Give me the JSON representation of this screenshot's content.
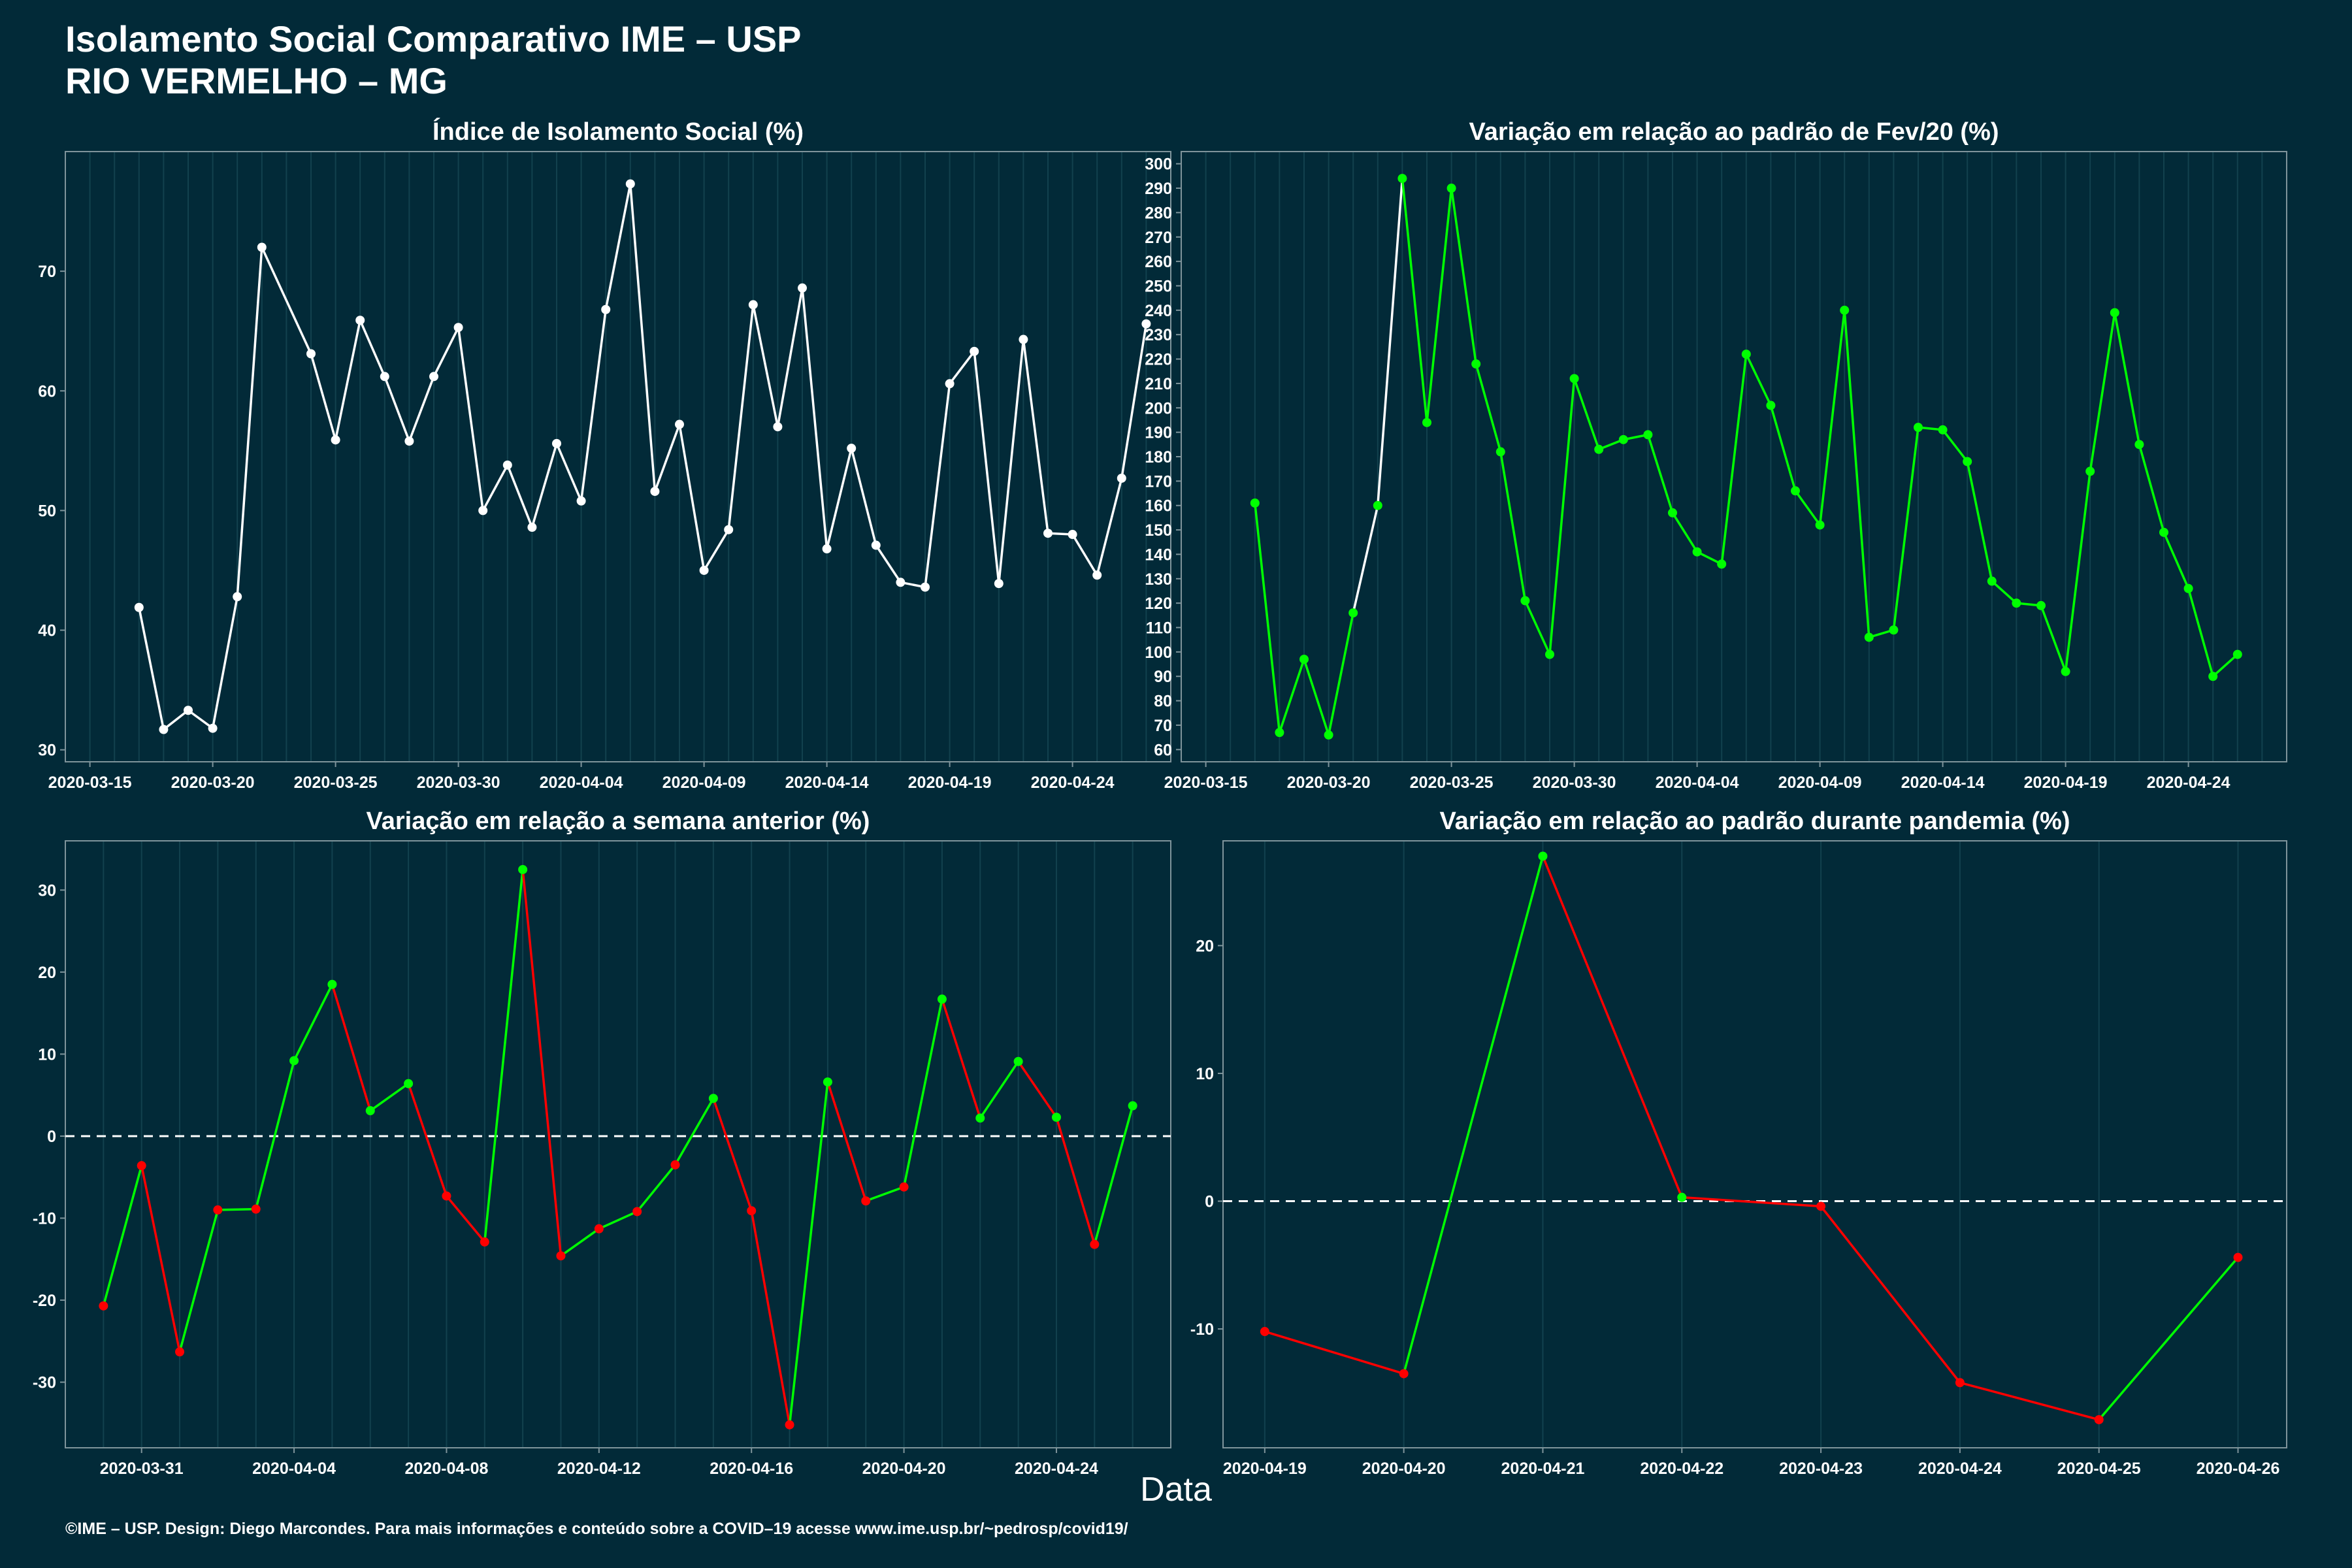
{
  "title_line1": "Isolamento Social Comparativo IME – USP",
  "title_line2": "RIO VERMELHO – MG",
  "xaxis_title": "Data",
  "footer": "©IME – USP. Design: Diego Marcondes. Para mais informações e conteúdo sobre a COVID–19 acesse www.ime.usp.br/~pedrosp/covid19/",
  "colors": {
    "background": "#022a38",
    "positive": "#00ff00",
    "negative": "#ff0000",
    "neutral": "#ffffff"
  },
  "chart_data": [
    {
      "type": "line",
      "title": "Índice de Isolamento Social (%)",
      "x_range": [
        "2020-03-14",
        "2020-04-28"
      ],
      "ylim": [
        29,
        80
      ],
      "yticks": [
        30,
        40,
        50,
        60,
        70
      ],
      "xticks": [
        "2020-03-15",
        "2020-03-20",
        "2020-03-25",
        "2020-03-30",
        "2020-04-04",
        "2020-04-09",
        "2020-04-14",
        "2020-04-19",
        "2020-04-24"
      ],
      "color_mode": "white",
      "x": [
        "2020-03-17",
        "2020-03-18",
        "2020-03-19",
        "2020-03-20",
        "2020-03-21",
        "2020-03-22",
        "2020-03-24",
        "2020-03-25",
        "2020-03-26",
        "2020-03-27",
        "2020-03-28",
        "2020-03-29",
        "2020-03-30",
        "2020-03-31",
        "2020-04-01",
        "2020-04-02",
        "2020-04-03",
        "2020-04-04",
        "2020-04-05",
        "2020-04-06",
        "2020-04-07",
        "2020-04-08",
        "2020-04-09",
        "2020-04-10",
        "2020-04-11",
        "2020-04-12",
        "2020-04-13",
        "2020-04-14",
        "2020-04-15",
        "2020-04-16",
        "2020-04-17",
        "2020-04-18",
        "2020-04-19",
        "2020-04-20",
        "2020-04-21",
        "2020-04-22",
        "2020-04-23",
        "2020-04-24",
        "2020-04-25",
        "2020-04-26",
        "2020-04-27"
      ],
      "y": [
        41.9,
        31.7,
        33.3,
        31.8,
        42.8,
        72.0,
        63.1,
        55.9,
        65.9,
        61.2,
        55.8,
        61.2,
        65.3,
        50.0,
        53.8,
        48.6,
        55.6,
        50.8,
        66.8,
        77.3,
        51.6,
        57.2,
        45.0,
        48.4,
        67.2,
        57.0,
        68.6,
        46.8,
        55.2,
        47.1,
        44.0,
        43.6,
        60.6,
        63.3,
        43.9,
        64.3,
        48.1,
        48.0,
        44.6,
        52.7,
        65.6
      ]
    },
    {
      "type": "line",
      "title": "Variação em relação ao padrão de Fev/20 (%)",
      "x_range": [
        "2020-03-14",
        "2020-04-28"
      ],
      "ylim": [
        55,
        305
      ],
      "yticks": [
        60,
        70,
        80,
        90,
        100,
        110,
        120,
        130,
        140,
        150,
        160,
        170,
        180,
        190,
        200,
        210,
        220,
        230,
        240,
        250,
        260,
        270,
        280,
        290,
        300
      ],
      "xticks": [
        "2020-03-15",
        "2020-03-20",
        "2020-03-25",
        "2020-03-30",
        "2020-04-04",
        "2020-04-09",
        "2020-04-14",
        "2020-04-19",
        "2020-04-24"
      ],
      "color_mode": "direction",
      "x": [
        "2020-03-17",
        "2020-03-18",
        "2020-03-19",
        "2020-03-20",
        "2020-03-21",
        "2020-03-22",
        "2020-03-23",
        "2020-03-24",
        "2020-03-25",
        "2020-03-26",
        "2020-03-27",
        "2020-03-28",
        "2020-03-29",
        "2020-03-30",
        "2020-03-31",
        "2020-04-01",
        "2020-04-02",
        "2020-04-03",
        "2020-04-04",
        "2020-04-05",
        "2020-04-06",
        "2020-04-07",
        "2020-04-08",
        "2020-04-09",
        "2020-04-10",
        "2020-04-11",
        "2020-04-12",
        "2020-04-13",
        "2020-04-14",
        "2020-04-15",
        "2020-04-16",
        "2020-04-17",
        "2020-04-18",
        "2020-04-19",
        "2020-04-20",
        "2020-04-21",
        "2020-04-22",
        "2020-04-23",
        "2020-04-24",
        "2020-04-25",
        "2020-04-26"
      ],
      "y": [
        161,
        67,
        97,
        66,
        116,
        160,
        294,
        194,
        290,
        218,
        182,
        121,
        99,
        212,
        183,
        187,
        189,
        157,
        141,
        136,
        222,
        201,
        166,
        152,
        240,
        106,
        109,
        192,
        191,
        178,
        129,
        120,
        119,
        92,
        174,
        239,
        185,
        149,
        126,
        90,
        99
      ]
    },
    {
      "type": "line",
      "title": "Variação em relação a semana anterior (%)",
      "x_range": [
        "2020-03-29",
        "2020-04-27"
      ],
      "ylim": [
        -38,
        36
      ],
      "yticks": [
        -30,
        -20,
        -10,
        0,
        10,
        20,
        30
      ],
      "xticks": [
        "2020-03-31",
        "2020-04-04",
        "2020-04-08",
        "2020-04-12",
        "2020-04-16",
        "2020-04-20",
        "2020-04-24"
      ],
      "color_mode": "sign",
      "zero_line": true,
      "x": [
        "2020-03-30",
        "2020-03-31",
        "2020-04-01",
        "2020-04-02",
        "2020-04-03",
        "2020-04-04",
        "2020-04-05",
        "2020-04-06",
        "2020-04-07",
        "2020-04-08",
        "2020-04-09",
        "2020-04-10",
        "2020-04-11",
        "2020-04-12",
        "2020-04-13",
        "2020-04-14",
        "2020-04-15",
        "2020-04-16",
        "2020-04-17",
        "2020-04-18",
        "2020-04-19",
        "2020-04-20",
        "2020-04-21",
        "2020-04-22",
        "2020-04-23",
        "2020-04-24",
        "2020-04-25",
        "2020-04-26"
      ],
      "y": [
        -20.7,
        -3.6,
        -26.3,
        -9.0,
        -8.9,
        9.2,
        18.5,
        3.1,
        6.4,
        -7.3,
        -12.9,
        32.5,
        -14.6,
        -11.3,
        -9.2,
        -3.5,
        4.6,
        -9.1,
        -35.2,
        6.6,
        -7.9,
        -6.2,
        16.7,
        2.2,
        9.1,
        2.3,
        -13.2,
        3.7
      ]
    },
    {
      "type": "line",
      "title": "Variação em relação ao padrão durante pandemia (%)",
      "x_range": [
        "2020-04-18.7",
        "2020-04-26.35"
      ],
      "ylim": [
        -19.3,
        28.2
      ],
      "yticks": [
        -10,
        0,
        10,
        20
      ],
      "xticks": [
        "2020-04-19",
        "2020-04-20",
        "2020-04-21",
        "2020-04-22",
        "2020-04-23",
        "2020-04-24",
        "2020-04-25",
        "2020-04-26"
      ],
      "color_mode": "sign",
      "zero_line": true,
      "x": [
        "2020-04-19",
        "2020-04-20",
        "2020-04-21",
        "2020-04-22",
        "2020-04-23",
        "2020-04-24",
        "2020-04-25",
        "2020-04-26"
      ],
      "y": [
        -10.2,
        -13.5,
        27.0,
        0.3,
        -0.4,
        -14.2,
        -17.1,
        -4.4
      ]
    }
  ]
}
